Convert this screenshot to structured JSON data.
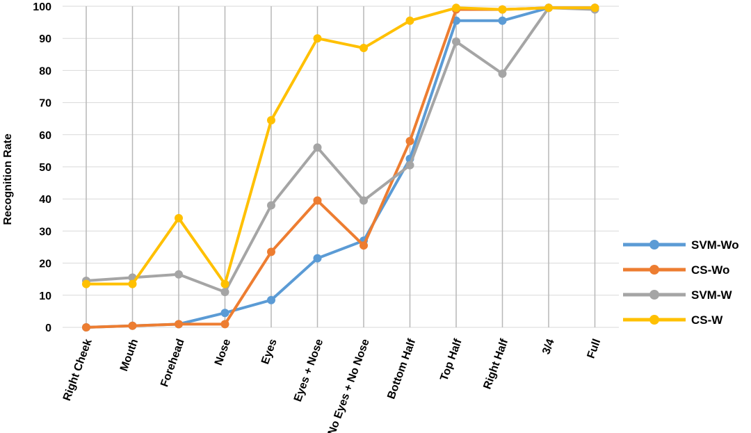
{
  "chart_data": {
    "type": "line",
    "title": "",
    "xlabel": "",
    "ylabel": "Recognition Rate",
    "ylim": [
      0,
      100
    ],
    "yticks": [
      0,
      10,
      20,
      30,
      40,
      50,
      60,
      70,
      80,
      90,
      100
    ],
    "grid": true,
    "legend_position": "right",
    "categories": [
      "Right Cheek",
      "Mouth",
      "Forehead",
      "Nose",
      "Eyes",
      "Eyes + Nose",
      "No Eyes + No Nose",
      "Bottom Half",
      "Top Half",
      "Right Half",
      "3/4",
      "Full"
    ],
    "series": [
      {
        "name": "SVM-Wo",
        "color": "#5b9bd5",
        "values": [
          0,
          0.5,
          1,
          4.5,
          8.5,
          21.5,
          27,
          52.5,
          95.5,
          95.5,
          99.5,
          99.5
        ]
      },
      {
        "name": "CS-Wo",
        "color": "#ed7d31",
        "values": [
          0,
          0.5,
          1,
          1,
          23.5,
          39.5,
          25.5,
          58,
          99,
          99,
          99.5,
          99.5
        ]
      },
      {
        "name": "SVM-W",
        "color": "#a5a5a5",
        "values": [
          14.5,
          15.5,
          16.5,
          11,
          38,
          56,
          39.5,
          50.5,
          89,
          79,
          99.5,
          99
        ]
      },
      {
        "name": "CS-W",
        "color": "#ffc000",
        "values": [
          13.5,
          13.5,
          34,
          13.5,
          64.5,
          90,
          87,
          95.5,
          99.5,
          99,
          99.5,
          99.5
        ]
      }
    ]
  }
}
